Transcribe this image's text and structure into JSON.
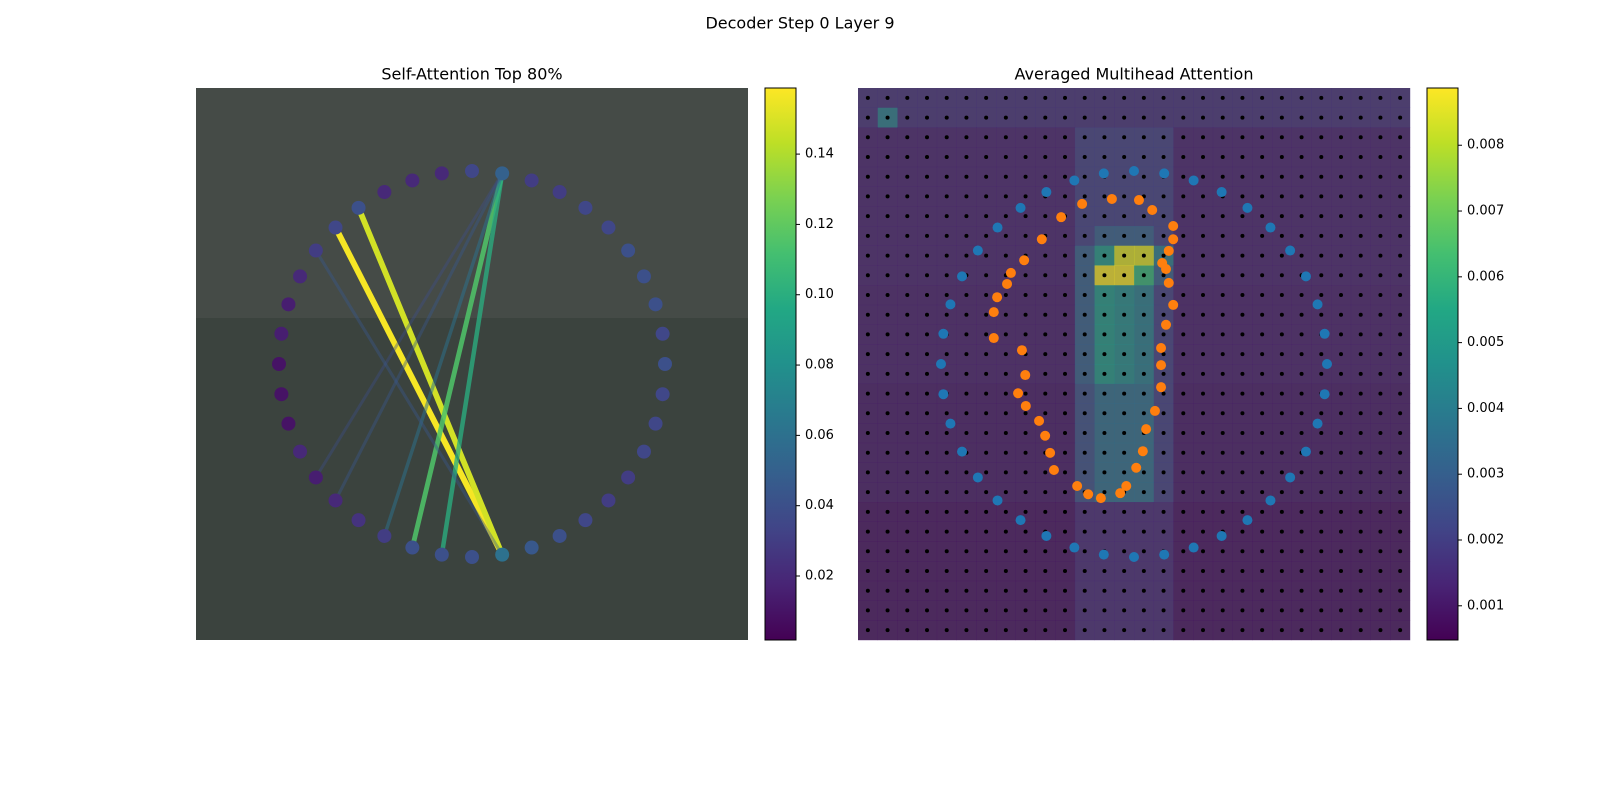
{
  "title": "Decoder Step 0 Layer 9",
  "chart_data": [
    {
      "type": "graph",
      "title": "Self-Attention Top 80%",
      "node_values": [
        0.035,
        0.05,
        0.03,
        0.03,
        0.035,
        0.035,
        0.04,
        0.04,
        0.04,
        0.035,
        0.04,
        0.035,
        0.035,
        0.035,
        0.03,
        0.03,
        0.035,
        0.04,
        0.045,
        0.06,
        0.04,
        0.04,
        0.04,
        0.03,
        0.025,
        0.02,
        0.015,
        0.02,
        0.01,
        0.01,
        0.01,
        0.015,
        0.015,
        0.02,
        0.03,
        0.035,
        0.04,
        0.02,
        0.02,
        0.02
      ],
      "edges": [
        {
          "source": 19,
          "target": 35,
          "value": 0.157
        },
        {
          "source": 19,
          "target": 36,
          "value": 0.148
        },
        {
          "source": 1,
          "target": 22,
          "value": 0.115
        },
        {
          "source": 1,
          "target": 21,
          "value": 0.1
        },
        {
          "source": 1,
          "target": 23,
          "value": 0.06
        },
        {
          "source": 1,
          "target": 25,
          "value": 0.045
        },
        {
          "source": 1,
          "target": 26,
          "value": 0.04
        },
        {
          "source": 19,
          "target": 34,
          "value": 0.045
        }
      ],
      "colorbar": {
        "lim": [
          0.0018,
          0.1588
        ],
        "ticks": [
          0.02,
          0.04,
          0.06,
          0.08,
          {
            "value": 0.1,
            "label": "0.10"
          },
          0.12,
          0.14
        ]
      }
    },
    {
      "type": "heatmap",
      "title": "Averaged Multihead Attention",
      "ring_color": "#1f77b4",
      "heatmap": [
        [
          0.0016,
          0.0016,
          0.0016,
          0.0016,
          0.0016,
          0.0016,
          0.0016,
          0.0016,
          0.0016,
          0.0016,
          0.0016,
          0.0016,
          0.0016,
          0.0016,
          0.0016,
          0.0016,
          0.0016,
          0.0016,
          0.0016,
          0.0016,
          0.0016,
          0.0016,
          0.0016,
          0.0016,
          0.0016,
          0.0016,
          0.0016,
          0.0016
        ],
        [
          0.0016,
          0.004,
          0.0016,
          0.0016,
          0.0016,
          0.0016,
          0.0016,
          0.0016,
          0.0016,
          0.0016,
          0.0016,
          0.0016,
          0.0016,
          0.0016,
          0.0016,
          0.0016,
          0.0016,
          0.0016,
          0.0016,
          0.0016,
          0.0016,
          0.0016,
          0.0016,
          0.0016,
          0.0016,
          0.0016,
          0.0016,
          0.0016
        ],
        [
          0.0012,
          0.0012,
          0.0012,
          0.0012,
          0.0012,
          0.0012,
          0.0012,
          0.0012,
          0.0012,
          0.0012,
          0.0012,
          0.002,
          0.002,
          0.002,
          0.002,
          0.002,
          0.0012,
          0.0012,
          0.0012,
          0.0012,
          0.0012,
          0.0012,
          0.0012,
          0.0012,
          0.0012,
          0.0012,
          0.0012,
          0.0012
        ],
        [
          0.0012,
          0.0012,
          0.0012,
          0.0012,
          0.0012,
          0.0012,
          0.0012,
          0.0012,
          0.0012,
          0.0012,
          0.0012,
          0.002,
          0.002,
          0.002,
          0.002,
          0.002,
          0.0012,
          0.0012,
          0.0012,
          0.0012,
          0.0012,
          0.0012,
          0.0012,
          0.0012,
          0.0012,
          0.0012,
          0.0012,
          0.0012
        ],
        [
          0.0012,
          0.0012,
          0.0012,
          0.0012,
          0.0012,
          0.0012,
          0.0012,
          0.0012,
          0.0012,
          0.0012,
          0.0012,
          0.002,
          0.002,
          0.002,
          0.002,
          0.002,
          0.0012,
          0.0012,
          0.0012,
          0.0012,
          0.0012,
          0.0012,
          0.0012,
          0.0012,
          0.0012,
          0.0012,
          0.0012,
          0.0012
        ],
        [
          0.0012,
          0.0012,
          0.0012,
          0.0012,
          0.0012,
          0.0012,
          0.0012,
          0.0012,
          0.0012,
          0.0012,
          0.0012,
          0.002,
          0.002,
          0.002,
          0.002,
          0.002,
          0.0012,
          0.0012,
          0.0012,
          0.0012,
          0.0012,
          0.0012,
          0.0012,
          0.0012,
          0.0012,
          0.0012,
          0.0012,
          0.0012
        ],
        [
          0.0012,
          0.0012,
          0.0012,
          0.0012,
          0.0012,
          0.0012,
          0.0012,
          0.0012,
          0.0012,
          0.0012,
          0.0012,
          0.002,
          0.002,
          0.002,
          0.002,
          0.002,
          0.0012,
          0.0012,
          0.0012,
          0.0012,
          0.0012,
          0.0012,
          0.0012,
          0.0012,
          0.0012,
          0.0012,
          0.0012,
          0.0012
        ],
        [
          0.0012,
          0.0012,
          0.0012,
          0.0012,
          0.0012,
          0.0012,
          0.0012,
          0.0012,
          0.0012,
          0.0012,
          0.0012,
          0.002,
          0.003,
          0.003,
          0.003,
          0.002,
          0.0012,
          0.0012,
          0.0012,
          0.0012,
          0.0012,
          0.0012,
          0.0012,
          0.0012,
          0.0012,
          0.0012,
          0.0012,
          0.0012
        ],
        [
          0.0012,
          0.0012,
          0.0012,
          0.0012,
          0.0012,
          0.0012,
          0.0012,
          0.0012,
          0.0012,
          0.0012,
          0.0012,
          0.003,
          0.005,
          0.0085,
          0.0085,
          0.004,
          0.0012,
          0.0012,
          0.0012,
          0.0012,
          0.0012,
          0.0012,
          0.0012,
          0.0012,
          0.0012,
          0.0012,
          0.0012,
          0.0012
        ],
        [
          0.0012,
          0.0012,
          0.0012,
          0.0012,
          0.0012,
          0.0012,
          0.0012,
          0.0012,
          0.0012,
          0.0012,
          0.0012,
          0.003,
          0.0088,
          0.0088,
          0.006,
          0.003,
          0.0012,
          0.0012,
          0.0012,
          0.0012,
          0.0012,
          0.0012,
          0.0012,
          0.0012,
          0.0012,
          0.0012,
          0.0012,
          0.0012
        ],
        [
          0.0011,
          0.0011,
          0.0011,
          0.0011,
          0.0011,
          0.0011,
          0.0011,
          0.0011,
          0.0011,
          0.0011,
          0.0011,
          0.003,
          0.005,
          0.0045,
          0.004,
          0.002,
          0.0011,
          0.0011,
          0.0011,
          0.0011,
          0.0011,
          0.0011,
          0.0011,
          0.0011,
          0.0011,
          0.0011,
          0.0011,
          0.0011
        ],
        [
          0.0011,
          0.0011,
          0.0011,
          0.0011,
          0.0011,
          0.0011,
          0.0011,
          0.0011,
          0.0011,
          0.0011,
          0.0011,
          0.003,
          0.005,
          0.0045,
          0.004,
          0.002,
          0.0011,
          0.0011,
          0.0011,
          0.0011,
          0.0011,
          0.0011,
          0.0011,
          0.0011,
          0.0011,
          0.0011,
          0.0011,
          0.0011
        ],
        [
          0.0011,
          0.0011,
          0.0011,
          0.0011,
          0.0011,
          0.0011,
          0.0011,
          0.0011,
          0.0011,
          0.0011,
          0.0011,
          0.003,
          0.005,
          0.0045,
          0.004,
          0.002,
          0.0011,
          0.0011,
          0.0011,
          0.0011,
          0.0011,
          0.0011,
          0.0011,
          0.0011,
          0.0011,
          0.0011,
          0.0011,
          0.0011
        ],
        [
          0.0011,
          0.0011,
          0.0011,
          0.0011,
          0.0011,
          0.0011,
          0.0011,
          0.0011,
          0.0011,
          0.0011,
          0.0011,
          0.003,
          0.005,
          0.0045,
          0.004,
          0.002,
          0.0011,
          0.0011,
          0.0011,
          0.0011,
          0.0011,
          0.0011,
          0.0011,
          0.0011,
          0.0011,
          0.0011,
          0.0011,
          0.0011
        ],
        [
          0.0011,
          0.0011,
          0.0011,
          0.0011,
          0.0011,
          0.0011,
          0.0011,
          0.0011,
          0.0011,
          0.0011,
          0.0011,
          0.003,
          0.005,
          0.0045,
          0.004,
          0.002,
          0.0011,
          0.0011,
          0.0011,
          0.0011,
          0.0011,
          0.0011,
          0.0011,
          0.0011,
          0.0011,
          0.0011,
          0.0011,
          0.0011
        ],
        [
          0.001,
          0.001,
          0.001,
          0.001,
          0.001,
          0.001,
          0.001,
          0.001,
          0.001,
          0.001,
          0.001,
          0.0025,
          0.0035,
          0.0035,
          0.0035,
          0.002,
          0.001,
          0.001,
          0.001,
          0.001,
          0.001,
          0.001,
          0.001,
          0.001,
          0.001,
          0.001,
          0.001,
          0.001
        ],
        [
          0.001,
          0.001,
          0.001,
          0.001,
          0.001,
          0.001,
          0.001,
          0.001,
          0.001,
          0.001,
          0.001,
          0.0025,
          0.0035,
          0.0035,
          0.0035,
          0.002,
          0.001,
          0.001,
          0.001,
          0.001,
          0.001,
          0.001,
          0.001,
          0.001,
          0.001,
          0.001,
          0.001,
          0.001
        ],
        [
          0.001,
          0.001,
          0.001,
          0.001,
          0.001,
          0.001,
          0.001,
          0.001,
          0.001,
          0.001,
          0.001,
          0.0025,
          0.0035,
          0.0035,
          0.0035,
          0.002,
          0.001,
          0.001,
          0.001,
          0.001,
          0.001,
          0.001,
          0.001,
          0.001,
          0.001,
          0.001,
          0.001,
          0.001
        ],
        [
          0.001,
          0.001,
          0.001,
          0.001,
          0.001,
          0.001,
          0.001,
          0.001,
          0.001,
          0.001,
          0.001,
          0.0025,
          0.0035,
          0.0035,
          0.0035,
          0.002,
          0.001,
          0.001,
          0.001,
          0.001,
          0.001,
          0.001,
          0.001,
          0.001,
          0.001,
          0.001,
          0.001,
          0.001
        ],
        [
          0.001,
          0.001,
          0.001,
          0.001,
          0.001,
          0.001,
          0.001,
          0.001,
          0.001,
          0.001,
          0.001,
          0.0025,
          0.0035,
          0.0035,
          0.0035,
          0.002,
          0.001,
          0.001,
          0.001,
          0.001,
          0.001,
          0.001,
          0.001,
          0.001,
          0.001,
          0.001,
          0.001,
          0.001
        ],
        [
          0.001,
          0.001,
          0.001,
          0.001,
          0.001,
          0.001,
          0.001,
          0.001,
          0.001,
          0.001,
          0.001,
          0.0025,
          0.0035,
          0.0035,
          0.0035,
          0.002,
          0.001,
          0.001,
          0.001,
          0.001,
          0.001,
          0.001,
          0.001,
          0.001,
          0.001,
          0.001,
          0.001,
          0.001
        ],
        [
          0.0008,
          0.0008,
          0.0008,
          0.0008,
          0.0008,
          0.0008,
          0.0008,
          0.0008,
          0.0008,
          0.0008,
          0.0008,
          0.0014,
          0.0014,
          0.0014,
          0.0014,
          0.0014,
          0.0008,
          0.0008,
          0.0008,
          0.0008,
          0.0008,
          0.0008,
          0.0008,
          0.0008,
          0.0008,
          0.0008,
          0.0008,
          0.0008
        ],
        [
          0.0008,
          0.0008,
          0.0008,
          0.0008,
          0.0008,
          0.0008,
          0.0008,
          0.0008,
          0.0008,
          0.0008,
          0.0008,
          0.0014,
          0.0014,
          0.0014,
          0.0014,
          0.0014,
          0.0008,
          0.0008,
          0.0008,
          0.0008,
          0.0008,
          0.0008,
          0.0008,
          0.0008,
          0.0008,
          0.0008,
          0.0008,
          0.0008
        ],
        [
          0.0008,
          0.0008,
          0.0008,
          0.0008,
          0.0008,
          0.0008,
          0.0008,
          0.0008,
          0.0008,
          0.0008,
          0.0008,
          0.0014,
          0.0014,
          0.0014,
          0.0014,
          0.0014,
          0.0008,
          0.0008,
          0.0008,
          0.0008,
          0.0008,
          0.0008,
          0.0008,
          0.0008,
          0.0008,
          0.0008,
          0.0008,
          0.0008
        ],
        [
          0.0008,
          0.0008,
          0.0008,
          0.0008,
          0.0008,
          0.0008,
          0.0008,
          0.0008,
          0.0008,
          0.0008,
          0.0008,
          0.0014,
          0.0014,
          0.0014,
          0.0014,
          0.0014,
          0.0008,
          0.0008,
          0.0008,
          0.0008,
          0.0008,
          0.0008,
          0.0008,
          0.0008,
          0.0008,
          0.0008,
          0.0008,
          0.0008
        ],
        [
          0.0008,
          0.0008,
          0.0008,
          0.0008,
          0.0008,
          0.0008,
          0.0008,
          0.0008,
          0.0008,
          0.0008,
          0.0008,
          0.0014,
          0.0014,
          0.0014,
          0.0014,
          0.0014,
          0.0008,
          0.0008,
          0.0008,
          0.0008,
          0.0008,
          0.0008,
          0.0008,
          0.0008,
          0.0008,
          0.0008,
          0.0008,
          0.0008
        ],
        [
          0.0008,
          0.0008,
          0.0008,
          0.0008,
          0.0008,
          0.0008,
          0.0008,
          0.0008,
          0.0008,
          0.0008,
          0.0008,
          0.0014,
          0.0014,
          0.0014,
          0.0014,
          0.0014,
          0.0008,
          0.0008,
          0.0008,
          0.0008,
          0.0008,
          0.0008,
          0.0008,
          0.0008,
          0.0008,
          0.0008,
          0.0008,
          0.0008
        ],
        [
          0.0008,
          0.0008,
          0.0008,
          0.0008,
          0.0008,
          0.0008,
          0.0008,
          0.0008,
          0.0008,
          0.0008,
          0.0008,
          0.0014,
          0.0014,
          0.0014,
          0.0014,
          0.0014,
          0.0008,
          0.0008,
          0.0008,
          0.0008,
          0.0008,
          0.0008,
          0.0008,
          0.0008,
          0.0008,
          0.0008,
          0.0008,
          0.0008
        ]
      ],
      "points": {
        "color": "#ff7f0e",
        "x": [
          0.46,
          0.509,
          0.533,
          0.571,
          0.571,
          0.563,
          0.551,
          0.558,
          0.563,
          0.571,
          0.558,
          0.549,
          0.549,
          0.549,
          0.538,
          0.522,
          0.516,
          0.504,
          0.486,
          0.475,
          0.44,
          0.417,
          0.397,
          0.355,
          0.348,
          0.339,
          0.328,
          0.304,
          0.29,
          0.303,
          0.297,
          0.246,
          0.246,
          0.252,
          0.27,
          0.277,
          0.301,
          0.333,
          0.368,
          0.406
        ],
        "y": [
          0.201,
          0.203,
          0.221,
          0.25,
          0.274,
          0.295,
          0.317,
          0.328,
          0.353,
          0.393,
          0.429,
          0.471,
          0.502,
          0.542,
          0.585,
          0.618,
          0.658,
          0.688,
          0.721,
          0.734,
          0.743,
          0.736,
          0.721,
          0.692,
          0.661,
          0.63,
          0.603,
          0.576,
          0.553,
          0.52,
          0.475,
          0.453,
          0.406,
          0.379,
          0.355,
          0.335,
          0.312,
          0.274,
          0.234,
          0.21
        ]
      },
      "xlim": [
        0,
        1
      ],
      "ylim": [
        0,
        1
      ],
      "colorbar": {
        "lim": [
          0.00048,
          0.00887
        ],
        "ticks": [
          0.001,
          0.002,
          0.003,
          0.004,
          0.005,
          0.006,
          0.007,
          0.008
        ]
      }
    }
  ]
}
